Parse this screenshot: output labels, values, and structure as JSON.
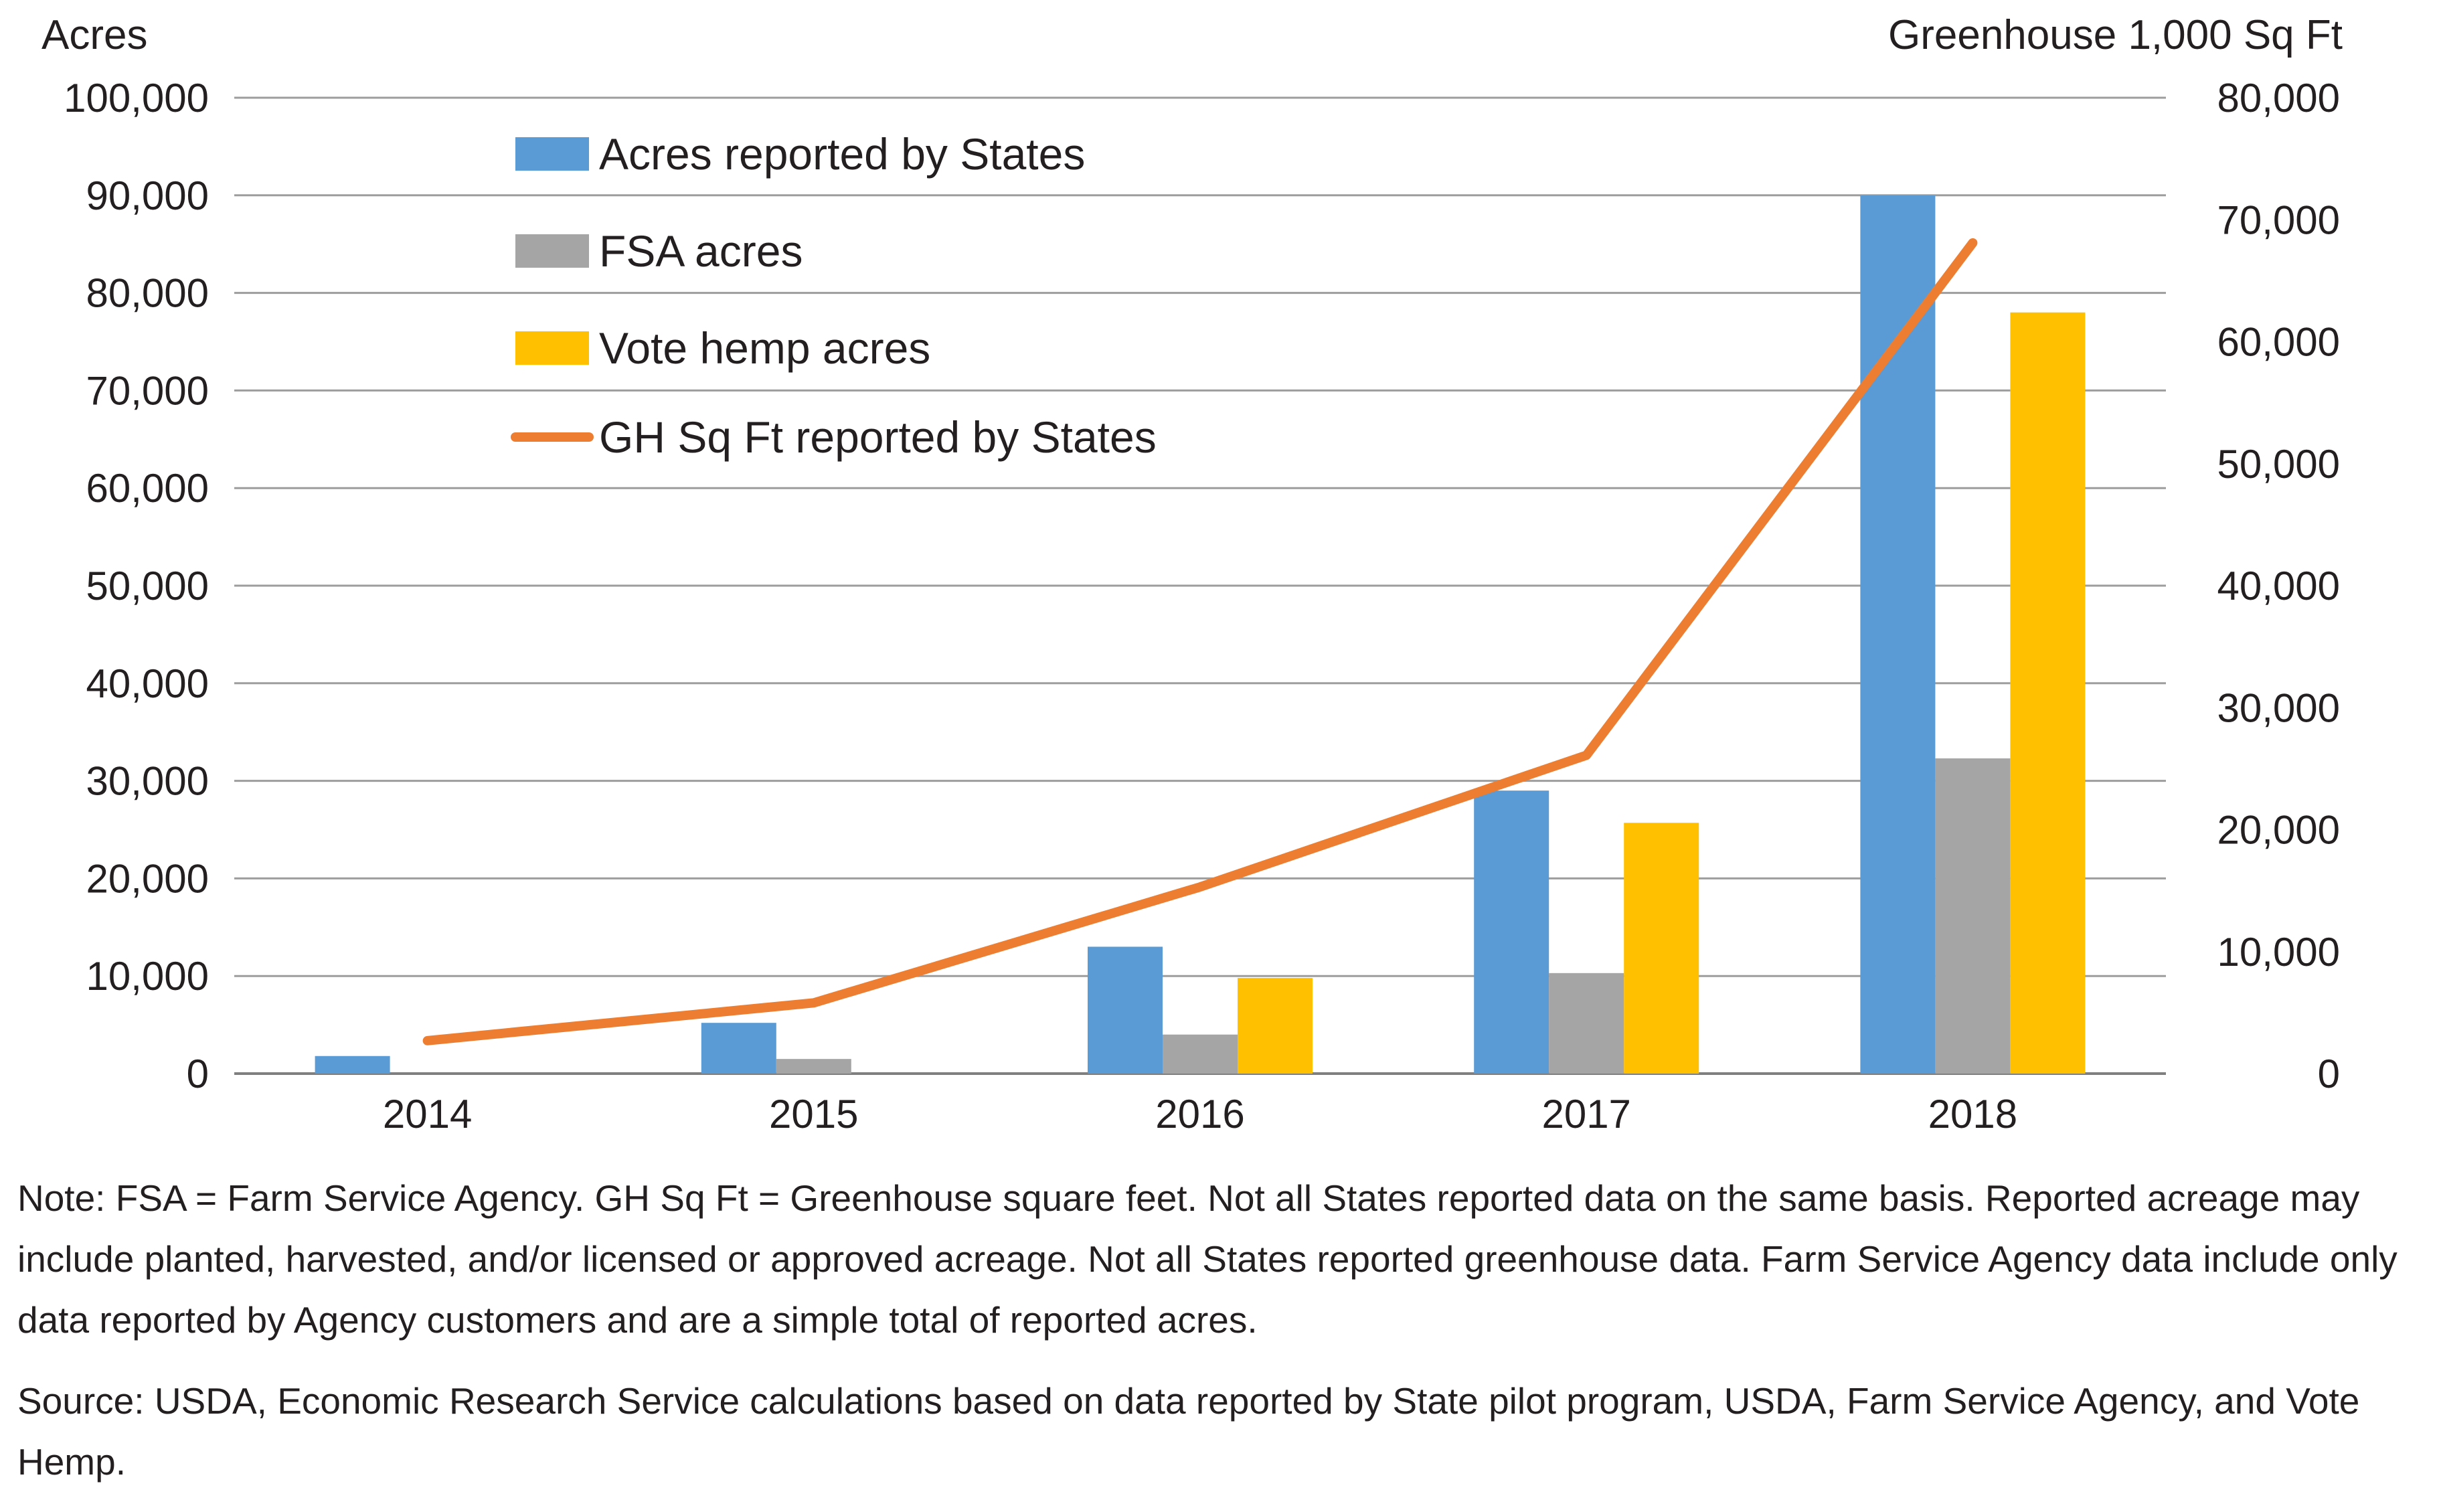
{
  "chart_data": {
    "type": "bar",
    "categories": [
      "2014",
      "2015",
      "2016",
      "2017",
      "2018"
    ],
    "series": [
      {
        "name": "Acres reported by States",
        "kind": "bar",
        "axis": "left",
        "color": "#5b9bd5",
        "values": [
          1800,
          5200,
          13000,
          29000,
          90000
        ]
      },
      {
        "name": "FSA acres",
        "kind": "bar",
        "axis": "left",
        "color": "#a5a5a5",
        "values": [
          0,
          1500,
          4000,
          10300,
          32300
        ]
      },
      {
        "name": "Vote hemp acres",
        "kind": "bar",
        "axis": "left",
        "color": "#ffc000",
        "values": [
          0,
          0,
          9800,
          25700,
          78000
        ]
      },
      {
        "name": "GH Sq Ft reported by States",
        "kind": "line",
        "axis": "right",
        "color": "#ed7d31",
        "values": [
          2700,
          5800,
          15300,
          26100,
          68100
        ]
      }
    ],
    "ylabel": "Acres",
    "y2label": "Greenhouse 1,000 Sq Ft",
    "ylim": [
      0,
      100000
    ],
    "y2lim": [
      0,
      80000
    ],
    "yticks": [
      "0",
      "10,000",
      "20,000",
      "30,000",
      "40,000",
      "50,000",
      "60,000",
      "70,000",
      "80,000",
      "90,000",
      "100,000"
    ],
    "y2ticks": [
      "0",
      "10,000",
      "20,000",
      "30,000",
      "40,000",
      "50,000",
      "60,000",
      "70,000",
      "80,000"
    ],
    "grid": true,
    "legend_position": "top-left"
  },
  "notes": {
    "note": "Note: FSA = Farm Service Agency. GH Sq Ft = Greenhouse square feet. Not all States reported data on the same basis. Reported acreage may include planted, harvested, and/or licensed or approved acreage. Not all States reported greenhouse data. Farm Service Agency data include only data reported by Agency customers and are a simple total of reported acres.",
    "source": "Source: USDA, Economic Research Service calculations based on data reported by State pilot program, USDA, Farm Service Agency, and Vote Hemp."
  }
}
